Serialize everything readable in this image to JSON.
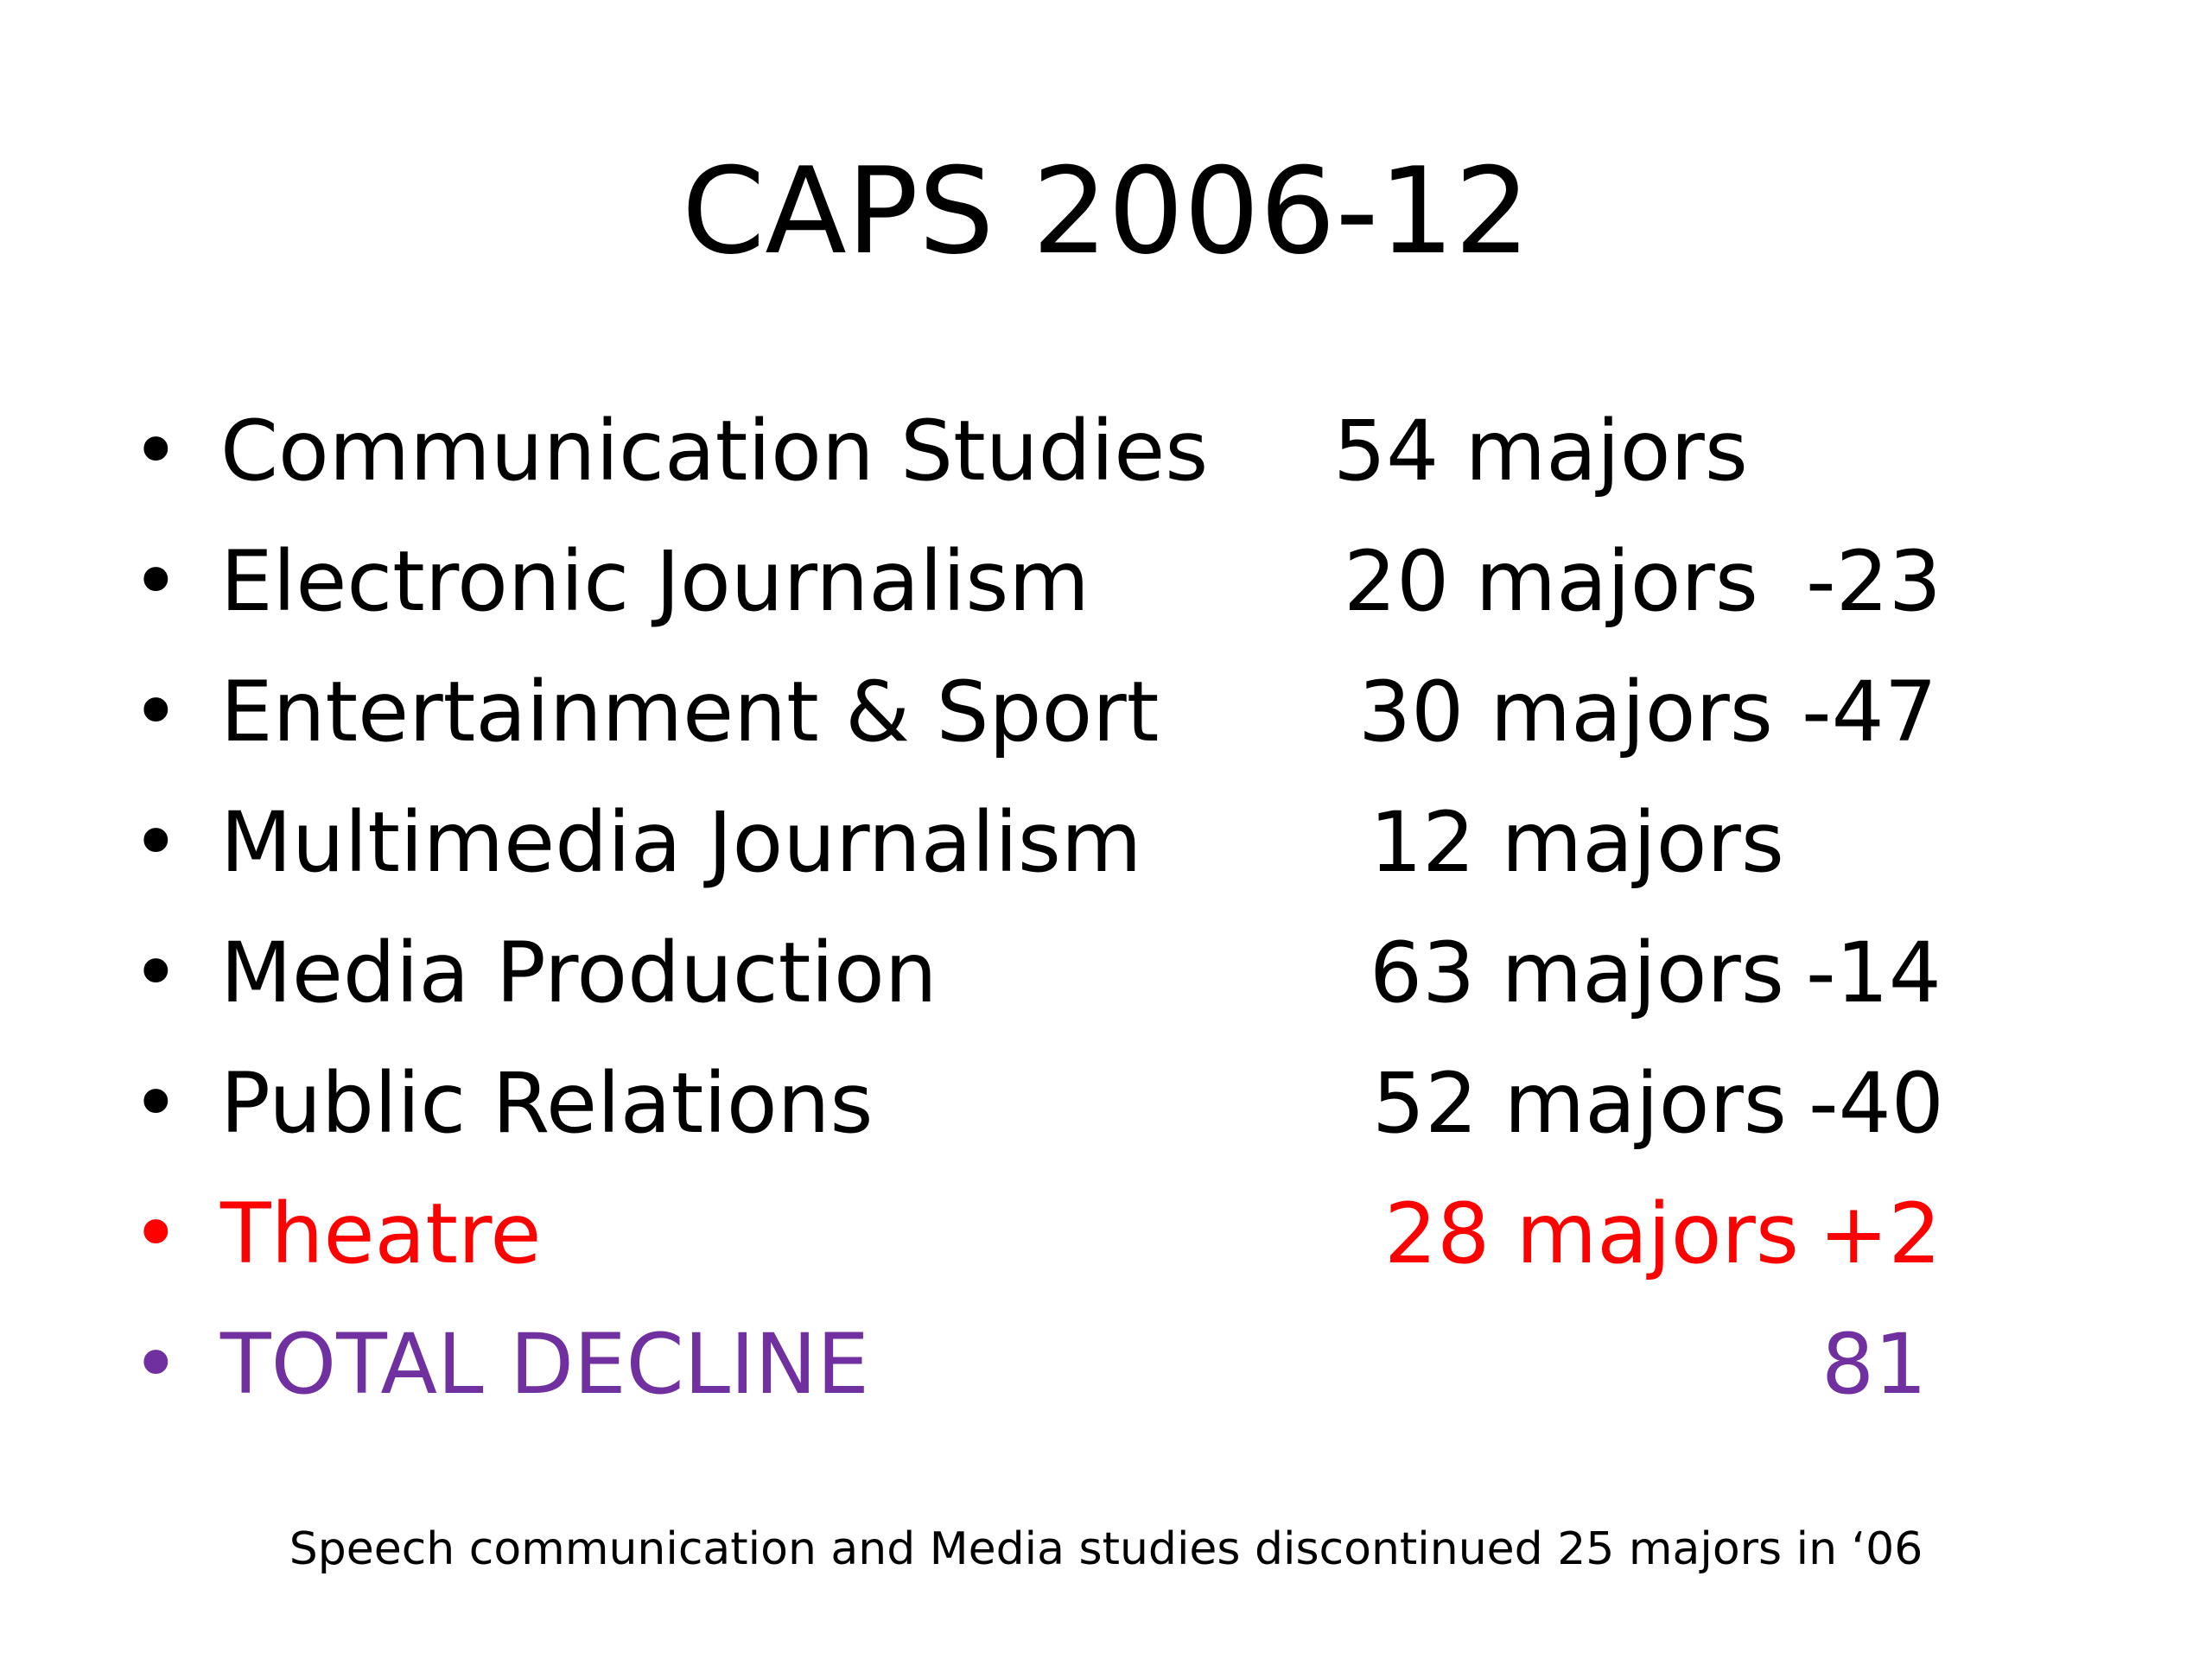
{
  "slide": {
    "title": "CAPS 2006-12",
    "colors": {
      "default": "#000000",
      "highlight": "#ff0000",
      "total": "#7030a0"
    },
    "items": [
      {
        "bullet": "•",
        "label": "Communication Studies",
        "count": "54 majors",
        "change": ""
      },
      {
        "bullet": "•",
        "label": "Electronic Journalism",
        "count": "20 majors",
        "change": "-23"
      },
      {
        "bullet": "•",
        "label": "Entertainment & Sport",
        "count": "30 majors",
        "change": "-47"
      },
      {
        "bullet": "•",
        "label": "Multimedia Journalism",
        "count": "12 majors",
        "change": ""
      },
      {
        "bullet": "•",
        "label": "Media Production",
        "count": "63 majors",
        "change": "-14"
      },
      {
        "bullet": "•",
        "label": "Public Relations",
        "count": "52 majors",
        "change": "-40"
      },
      {
        "bullet": "•",
        "label": "Theatre",
        "count": "28 majors",
        "change": "+2",
        "color": "highlight"
      },
      {
        "bullet": "•",
        "label": "TOTAL DECLINE",
        "count": "",
        "change": "81",
        "color": "total"
      }
    ],
    "footnote": "Speech communication and Media studies discontinued 25 majors in ‘06"
  }
}
